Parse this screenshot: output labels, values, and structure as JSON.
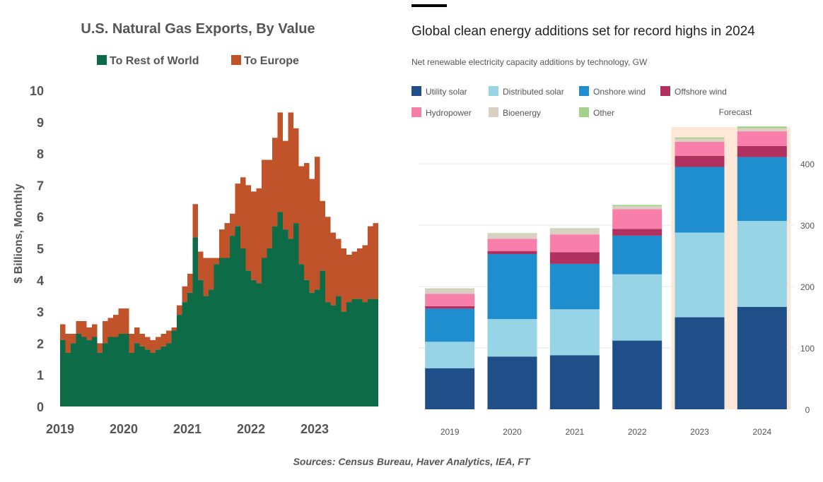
{
  "sources": "Sources: Census Bureau, Haver Analytics, IEA, FT",
  "chart_data": [
    {
      "type": "area",
      "title": "U.S. Natural Gas Exports,  By Value",
      "ylabel": "$ Billions, Monthly",
      "xlabel": "",
      "ylim": [
        0,
        10
      ],
      "yticks": [
        0,
        1,
        2,
        3,
        4,
        5,
        6,
        7,
        8,
        9,
        10
      ],
      "xticks": [
        "2019",
        "2020",
        "2021",
        "2022",
        "2023"
      ],
      "x_start": "2019-01",
      "x": [
        "2019-01",
        "2019-02",
        "2019-03",
        "2019-04",
        "2019-05",
        "2019-06",
        "2019-07",
        "2019-08",
        "2019-09",
        "2019-10",
        "2019-11",
        "2019-12",
        "2020-01",
        "2020-02",
        "2020-03",
        "2020-04",
        "2020-05",
        "2020-06",
        "2020-07",
        "2020-08",
        "2020-09",
        "2020-10",
        "2020-11",
        "2020-12",
        "2021-01",
        "2021-02",
        "2021-03",
        "2021-04",
        "2021-05",
        "2021-06",
        "2021-07",
        "2021-08",
        "2021-09",
        "2021-10",
        "2021-11",
        "2021-12",
        "2022-01",
        "2022-02",
        "2022-03",
        "2022-04",
        "2022-05",
        "2022-06",
        "2022-07",
        "2022-08",
        "2022-09",
        "2022-10",
        "2022-11",
        "2022-12",
        "2023-01",
        "2023-02",
        "2023-03",
        "2023-04",
        "2023-05",
        "2023-06",
        "2023-07",
        "2023-08",
        "2023-09",
        "2023-10",
        "2023-11",
        "2023-12"
      ],
      "legend_position": "top",
      "colors": {
        "rest_of_world": "#0d6b47",
        "europe": "#c0532a"
      },
      "series": [
        {
          "name": "To Rest of World",
          "values": [
            2.1,
            1.7,
            2.0,
            2.3,
            2.2,
            2.1,
            2.2,
            1.7,
            2.0,
            2.2,
            2.2,
            2.3,
            2.3,
            1.7,
            2.0,
            1.9,
            1.8,
            1.7,
            1.8,
            1.9,
            2.0,
            2.4,
            2.9,
            3.3,
            3.6,
            5.35,
            4.0,
            3.5,
            3.7,
            4.5,
            4.7,
            4.7,
            5.4,
            5.7,
            5.0,
            4.3,
            4.0,
            3.9,
            4.7,
            5.0,
            5.7,
            6.15,
            5.6,
            5.3,
            5.8,
            4.5,
            4.0,
            3.6,
            3.7,
            4.3,
            3.3,
            3.2,
            3.5,
            3.0,
            3.3,
            3.4,
            3.4,
            3.3,
            3.4,
            3.4
          ]
        },
        {
          "name": "To Europe",
          "values": [
            0.5,
            0.6,
            0.3,
            0.4,
            0.5,
            0.4,
            0.4,
            0.3,
            0.7,
            0.6,
            0.7,
            0.8,
            0.8,
            0.6,
            0.5,
            0.4,
            0.4,
            0.4,
            0.4,
            0.4,
            0.4,
            0.1,
            0.3,
            0.5,
            0.6,
            1.05,
            0.9,
            1.2,
            1.0,
            0.2,
            0.9,
            1.1,
            0.7,
            1.35,
            2.25,
            2.7,
            2.8,
            3.0,
            3.1,
            2.8,
            2.8,
            3.15,
            2.8,
            4.0,
            3.0,
            3.1,
            3.7,
            3.6,
            4.2,
            2.2,
            2.7,
            2.3,
            1.8,
            2.0,
            1.5,
            1.5,
            1.6,
            1.8,
            2.3,
            2.4
          ]
        }
      ]
    },
    {
      "type": "bar",
      "title": "Global clean energy additions set for record highs in 2024",
      "subtitle": "Net renewable electricity capacity additions by technology, GW",
      "annotation": "Forecast",
      "categories": [
        "2019",
        "2020",
        "2021",
        "2022",
        "2023",
        "2024"
      ],
      "forecast_categories": [
        "2023",
        "2024"
      ],
      "ylim": [
        0,
        460
      ],
      "yticks": [
        0,
        100,
        200,
        300,
        400
      ],
      "y_axis_position": "right",
      "legend_position": "top-left",
      "series": [
        {
          "name": "Utility solar",
          "color": "#1f4e89",
          "values": [
            67,
            86,
            88,
            112,
            150,
            167
          ]
        },
        {
          "name": "Distributed solar",
          "color": "#96d4e6",
          "values": [
            43,
            61,
            75,
            108,
            138,
            140
          ]
        },
        {
          "name": "Onshore wind",
          "color": "#1e8ecf",
          "values": [
            54,
            106,
            74,
            63,
            107,
            104
          ]
        },
        {
          "name": "Offshore wind",
          "color": "#b03060",
          "values": [
            4,
            5,
            19,
            11,
            18,
            18
          ]
        },
        {
          "name": "Hydropower",
          "color": "#f97fab",
          "values": [
            20,
            20,
            29,
            32,
            23,
            24
          ]
        },
        {
          "name": "Bioenergy",
          "color": "#d9cfc3",
          "values": [
            8,
            8,
            9,
            5,
            5,
            5
          ]
        },
        {
          "name": "Other",
          "color": "#a4d28a",
          "values": [
            1,
            1,
            1,
            2,
            2,
            3
          ]
        }
      ]
    }
  ]
}
